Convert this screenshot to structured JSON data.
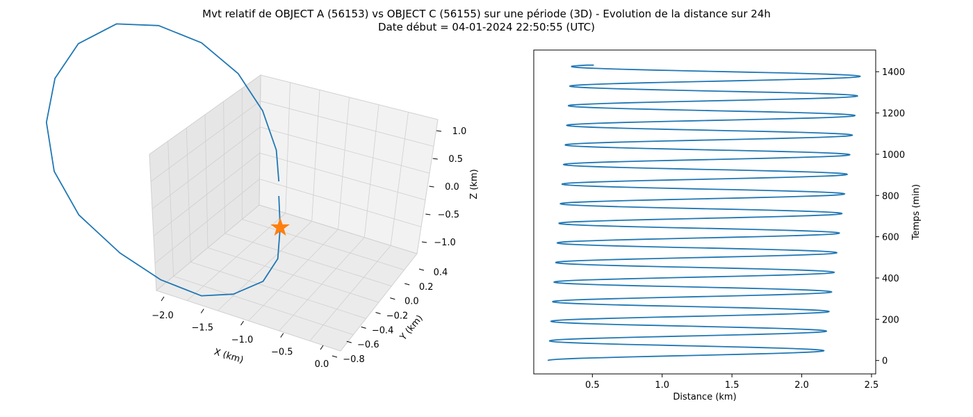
{
  "figure": {
    "title_line1": "Mvt relatif de OBJECT A (56153) vs OBJECT C (56155) sur une période (3D) - Evolution de la distance sur 24h",
    "title_line2": "Date début = 04-01-2024 22:50:55 (UTC)"
  },
  "chart_data": [
    {
      "type": "line3d",
      "xlabel": "X (km)",
      "ylabel": "Y (km)",
      "zlabel": "Z (km)",
      "x_ticks": [
        "−2.0",
        "−1.5",
        "−1.0",
        "−0.5",
        "0.0"
      ],
      "y_ticks": [
        "−0.8",
        "−0.6",
        "−0.4",
        "−0.2",
        "0.0",
        "0.2",
        "0.4"
      ],
      "z_ticks": [
        "−1.0",
        "−0.5",
        "0.0",
        "0.5",
        "1.0"
      ],
      "grid": true,
      "series": [
        {
          "kind": "line",
          "color": "#1f77b4",
          "x": [
            0.0,
            -0.05,
            -0.15,
            -0.35,
            -0.65,
            -0.95,
            -1.3,
            -1.62,
            -1.9,
            -2.03,
            -2.0,
            -1.85,
            -1.58,
            -1.22,
            -0.85,
            -0.5,
            -0.22,
            -0.05,
            0.02,
            0.0
          ],
          "y": [
            0.15,
            0.0,
            -0.2,
            -0.4,
            -0.55,
            -0.65,
            -0.7,
            -0.68,
            -0.55,
            -0.38,
            -0.15,
            0.05,
            0.25,
            0.38,
            0.45,
            0.46,
            0.42,
            0.35,
            0.25,
            0.15
          ],
          "z": [
            -0.2,
            -0.5,
            -0.8,
            -1.05,
            -1.25,
            -1.35,
            -1.3,
            -1.15,
            -0.9,
            -0.55,
            -0.1,
            0.35,
            0.75,
            1.05,
            1.15,
            1.1,
            0.9,
            0.6,
            0.25,
            -0.05
          ]
        },
        {
          "kind": "marker",
          "marker": "star",
          "color": "#ff7f0e",
          "x": [
            -0.05
          ],
          "y": [
            0.0
          ],
          "z": [
            -0.5
          ]
        }
      ]
    },
    {
      "type": "line",
      "xlabel": "Distance (km)",
      "ylabel": "Temps (min)",
      "xlim": [
        0.08,
        2.53
      ],
      "ylim": [
        -65,
        1505
      ],
      "x_ticks": [
        "0.5",
        "1.0",
        "1.5",
        "2.0",
        "2.5"
      ],
      "y_ticks": [
        "0",
        "200",
        "400",
        "600",
        "800",
        "1000",
        "1200",
        "1400"
      ],
      "y_axis_side": "right",
      "series": [
        {
          "color": "#1f77b4",
          "oscillation_period_min": 95,
          "t_start": 0,
          "t_end": 1432,
          "min_distance_start": 0.18,
          "min_distance_end": 0.35,
          "max_distance_start": 2.15,
          "max_distance_end": 2.43,
          "end_distance": 0.51
        }
      ]
    }
  ]
}
